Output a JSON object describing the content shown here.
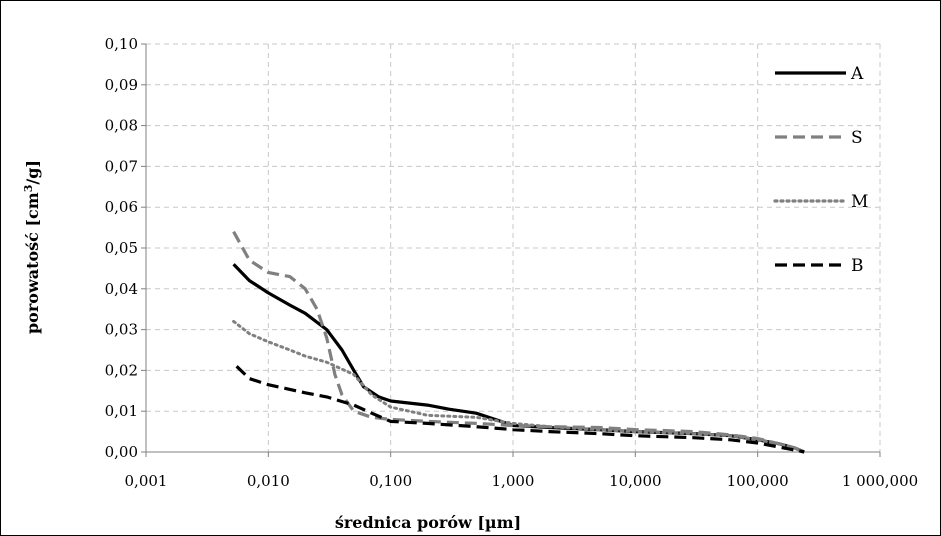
{
  "chart_data": {
    "type": "line",
    "title": "",
    "xlabel": "średnica porów [µm]",
    "ylabel_main": "porowatość [cm",
    "ylabel_sup": "3",
    "ylabel_end": "/g]",
    "x_scale": "log",
    "xlim": [
      0.001,
      1000
    ],
    "ylim": [
      0,
      0.1
    ],
    "grid": true,
    "legend_position": "top-right",
    "x_tick_values": [
      0.001,
      0.01,
      0.1,
      1,
      10,
      100,
      1000
    ],
    "x_tick_labels": [
      "0,001",
      "0,010",
      "0,100",
      "1,000",
      "10,000",
      "100,000",
      "1 000,000"
    ],
    "y_tick_values": [
      0,
      0.01,
      0.02,
      0.03,
      0.04,
      0.05,
      0.06,
      0.07,
      0.08,
      0.09,
      0.1
    ],
    "y_tick_labels": [
      "0,00",
      "0,01",
      "0,02",
      "0,03",
      "0,04",
      "0,05",
      "0,06",
      "0,07",
      "0,08",
      "0,09",
      "0,10"
    ],
    "series": [
      {
        "name": "A",
        "color": "#000000",
        "style": "solid",
        "points": [
          [
            0.0052,
            0.046
          ],
          [
            0.007,
            0.042
          ],
          [
            0.01,
            0.039
          ],
          [
            0.015,
            0.036
          ],
          [
            0.02,
            0.034
          ],
          [
            0.03,
            0.03
          ],
          [
            0.04,
            0.025
          ],
          [
            0.05,
            0.02
          ],
          [
            0.06,
            0.016
          ],
          [
            0.08,
            0.0135
          ],
          [
            0.1,
            0.0125
          ],
          [
            0.2,
            0.0115
          ],
          [
            0.3,
            0.0105
          ],
          [
            0.5,
            0.0095
          ],
          [
            0.8,
            0.0075
          ],
          [
            1,
            0.0065
          ],
          [
            2,
            0.006
          ],
          [
            5,
            0.0055
          ],
          [
            10,
            0.005
          ],
          [
            30,
            0.0045
          ],
          [
            60,
            0.004
          ],
          [
            100,
            0.003
          ],
          [
            150,
            0.002
          ],
          [
            200,
            0.001
          ],
          [
            240,
            0.0
          ]
        ]
      },
      {
        "name": "S",
        "color": "#808080",
        "style": "dashed",
        "points": [
          [
            0.0052,
            0.054
          ],
          [
            0.007,
            0.047
          ],
          [
            0.01,
            0.044
          ],
          [
            0.015,
            0.043
          ],
          [
            0.02,
            0.04
          ],
          [
            0.025,
            0.035
          ],
          [
            0.03,
            0.028
          ],
          [
            0.035,
            0.019
          ],
          [
            0.04,
            0.014
          ],
          [
            0.05,
            0.01
          ],
          [
            0.07,
            0.0085
          ],
          [
            0.1,
            0.008
          ],
          [
            0.2,
            0.0075
          ],
          [
            0.5,
            0.007
          ],
          [
            1,
            0.0065
          ],
          [
            2,
            0.0062
          ],
          [
            5,
            0.006
          ],
          [
            10,
            0.0055
          ],
          [
            30,
            0.005
          ],
          [
            60,
            0.0042
          ],
          [
            100,
            0.0033
          ],
          [
            150,
            0.002
          ],
          [
            200,
            0.001
          ],
          [
            240,
            0.0
          ]
        ]
      },
      {
        "name": "M",
        "color": "#808080",
        "style": "dotted",
        "points": [
          [
            0.0052,
            0.032
          ],
          [
            0.007,
            0.029
          ],
          [
            0.01,
            0.027
          ],
          [
            0.015,
            0.025
          ],
          [
            0.02,
            0.0235
          ],
          [
            0.03,
            0.022
          ],
          [
            0.05,
            0.019
          ],
          [
            0.07,
            0.014
          ],
          [
            0.1,
            0.011
          ],
          [
            0.2,
            0.009
          ],
          [
            0.5,
            0.0085
          ],
          [
            1,
            0.007
          ],
          [
            2,
            0.0062
          ],
          [
            5,
            0.0055
          ],
          [
            10,
            0.005
          ],
          [
            30,
            0.0045
          ],
          [
            60,
            0.004
          ],
          [
            100,
            0.003
          ],
          [
            150,
            0.002
          ],
          [
            200,
            0.001
          ],
          [
            240,
            0.0
          ]
        ]
      },
      {
        "name": "B",
        "color": "#000000",
        "style": "dashed",
        "points": [
          [
            0.0055,
            0.021
          ],
          [
            0.007,
            0.018
          ],
          [
            0.01,
            0.0165
          ],
          [
            0.02,
            0.0145
          ],
          [
            0.03,
            0.0135
          ],
          [
            0.05,
            0.0115
          ],
          [
            0.07,
            0.0095
          ],
          [
            0.1,
            0.0075
          ],
          [
            0.2,
            0.007
          ],
          [
            0.5,
            0.0062
          ],
          [
            1,
            0.0055
          ],
          [
            2,
            0.005
          ],
          [
            5,
            0.0045
          ],
          [
            10,
            0.004
          ],
          [
            30,
            0.0035
          ],
          [
            60,
            0.003
          ],
          [
            100,
            0.0022
          ],
          [
            150,
            0.0012
          ],
          [
            200,
            0.0005
          ],
          [
            240,
            0.0
          ]
        ]
      }
    ]
  }
}
